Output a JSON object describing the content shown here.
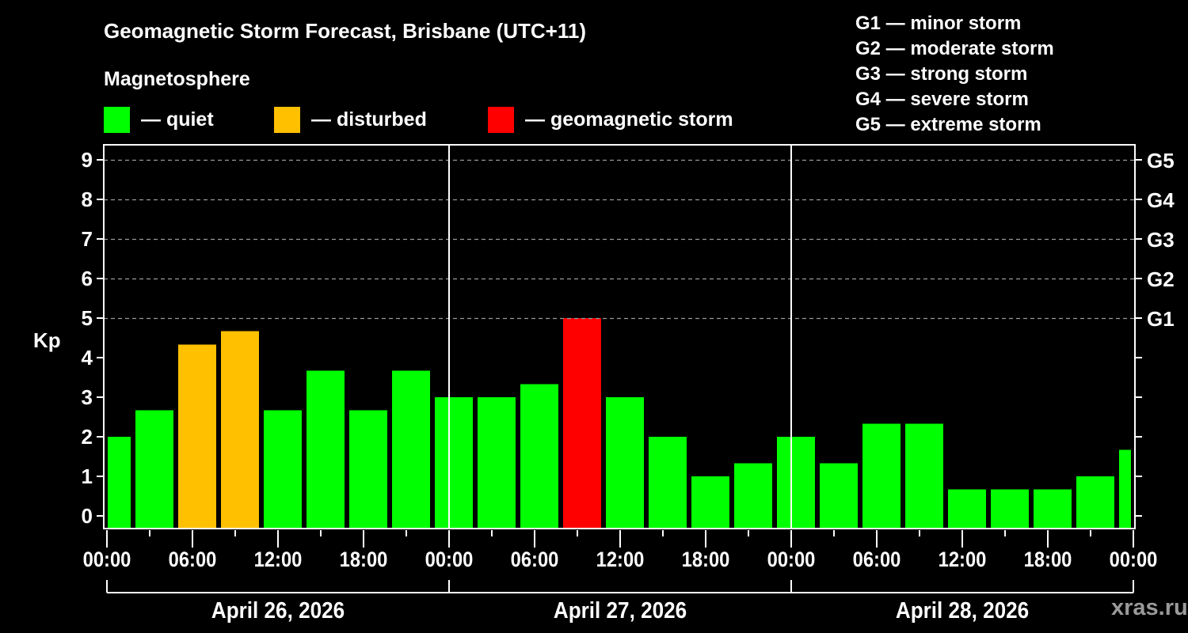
{
  "header": {
    "title": "Geomagnetic Storm Forecast, Brisbane (UTC+11)",
    "subtitle": "Magnetosphere"
  },
  "legend": [
    {
      "label": "— quiet",
      "color": "#00ff00"
    },
    {
      "label": "— disturbed",
      "color": "#ffc000"
    },
    {
      "label": "— geomagnetic storm",
      "color": "#ff0000"
    }
  ],
  "g_scale_legend": [
    "G1 — minor storm",
    "G2 — moderate storm",
    "G3 — strong storm",
    "G4 — severe storm",
    "G5 — extreme storm"
  ],
  "watermark": "xras.ru",
  "chart_data": {
    "type": "bar",
    "title": "Geomagnetic Storm Forecast, Brisbane (UTC+11)",
    "ylabel": "Kp",
    "ylim": [
      0,
      9
    ],
    "yticks": [
      0,
      1,
      2,
      3,
      4,
      5,
      6,
      7,
      8,
      9
    ],
    "right_axis_labels": [
      {
        "kp": 5,
        "label": "G1"
      },
      {
        "kp": 6,
        "label": "G2"
      },
      {
        "kp": 7,
        "label": "G3"
      },
      {
        "kp": 8,
        "label": "G4"
      },
      {
        "kp": 9,
        "label": "G5"
      }
    ],
    "grid": "dashed horizontal at integer Kp 5-9",
    "xtick_labels": [
      "00:00",
      "06:00",
      "12:00",
      "18:00",
      "00:00",
      "06:00",
      "12:00",
      "18:00",
      "00:00",
      "06:00",
      "12:00",
      "18:00",
      "00:00"
    ],
    "days": [
      "April 26, 2026",
      "April 27, 2026",
      "April 28, 2026"
    ],
    "interval_hours": 3,
    "values": [
      2.0,
      2.67,
      4.33,
      4.67,
      2.67,
      3.67,
      2.67,
      3.67,
      3.0,
      3.0,
      3.33,
      5.0,
      3.0,
      2.0,
      1.0,
      1.33,
      2.0,
      1.33,
      2.33,
      2.33,
      0.67,
      0.67,
      0.67,
      1.0,
      1.67
    ],
    "status": [
      "quiet",
      "quiet",
      "disturbed",
      "disturbed",
      "quiet",
      "quiet",
      "quiet",
      "quiet",
      "quiet",
      "quiet",
      "quiet",
      "storm",
      "quiet",
      "quiet",
      "quiet",
      "quiet",
      "quiet",
      "quiet",
      "quiet",
      "quiet",
      "quiet",
      "quiet",
      "quiet",
      "quiet",
      "quiet"
    ],
    "colors": {
      "quiet": "#00ff00",
      "disturbed": "#ffc000",
      "storm": "#ff0000"
    }
  }
}
